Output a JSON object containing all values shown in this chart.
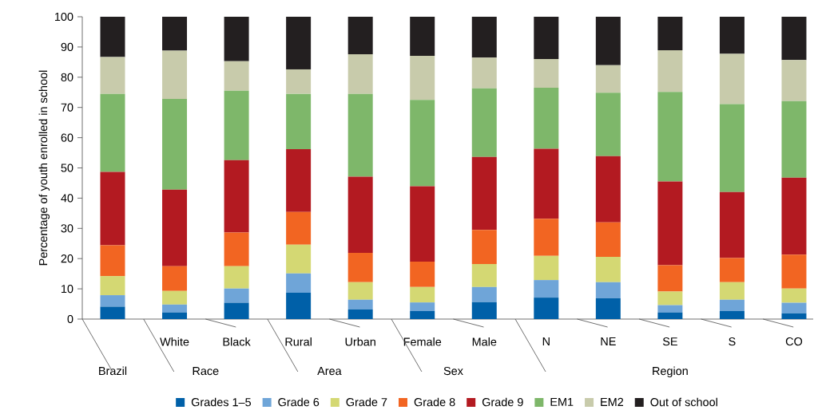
{
  "chart_data": {
    "type": "bar",
    "stacked": true,
    "ylabel": "Percentage of youth enrolled in school",
    "categories": [
      null,
      "White",
      "Black",
      "Rural",
      "Urban",
      "Female",
      "Male",
      "N",
      "NE",
      "SE",
      "S",
      "CO"
    ],
    "annotations": [
      "Brazil",
      "Race",
      "Area",
      "Sex",
      "Region"
    ],
    "ylim": [
      0,
      100
    ],
    "yticks": [
      0,
      10,
      20,
      30,
      40,
      50,
      60,
      70,
      80,
      90,
      100
    ],
    "grid": false,
    "legend": "bottom",
    "series": [
      {
        "name": "Grades 1–5",
        "color": "#0060a8",
        "values": [
          4.1,
          2.2,
          5.4,
          8.7,
          3.2,
          2.7,
          5.6,
          7.1,
          6.9,
          2.2,
          2.7,
          1.9
        ]
      },
      {
        "name": "Grade 6",
        "color": "#6fa5d8",
        "values": [
          3.8,
          2.6,
          4.7,
          6.4,
          3.2,
          2.8,
          5.0,
          5.8,
          5.3,
          2.4,
          3.7,
          3.5
        ]
      },
      {
        "name": "Grade 7",
        "color": "#d4d873",
        "values": [
          6.3,
          4.5,
          7.4,
          9.5,
          5.8,
          5.1,
          7.6,
          8.0,
          8.4,
          4.5,
          5.8,
          4.7
        ]
      },
      {
        "name": "Grade 8",
        "color": "#f26522",
        "values": [
          10.2,
          8.2,
          11.1,
          10.8,
          9.7,
          8.4,
          11.3,
          12.3,
          11.4,
          8.7,
          8.0,
          11.2
        ]
      },
      {
        "name": "Grade 9",
        "color": "#b31a21",
        "values": [
          24.3,
          25.3,
          24.0,
          20.8,
          25.2,
          24.9,
          24.1,
          23.1,
          21.9,
          27.7,
          21.8,
          25.5
        ]
      },
      {
        "name": "EM1",
        "color": "#7eb76a",
        "values": [
          25.8,
          30.0,
          22.9,
          18.3,
          27.4,
          28.6,
          22.7,
          20.2,
          21.0,
          29.6,
          29.1,
          25.3
        ]
      },
      {
        "name": "EM2",
        "color": "#c8cbab",
        "values": [
          12.2,
          16.0,
          9.8,
          8.1,
          13.1,
          14.6,
          10.2,
          9.5,
          9.1,
          13.8,
          16.6,
          13.6
        ]
      },
      {
        "name": "Out of school",
        "color": "#231f20",
        "values": [
          13.3,
          11.2,
          14.7,
          17.4,
          12.4,
          12.9,
          13.5,
          14.0,
          16.0,
          11.1,
          12.3,
          14.3
        ]
      }
    ]
  }
}
